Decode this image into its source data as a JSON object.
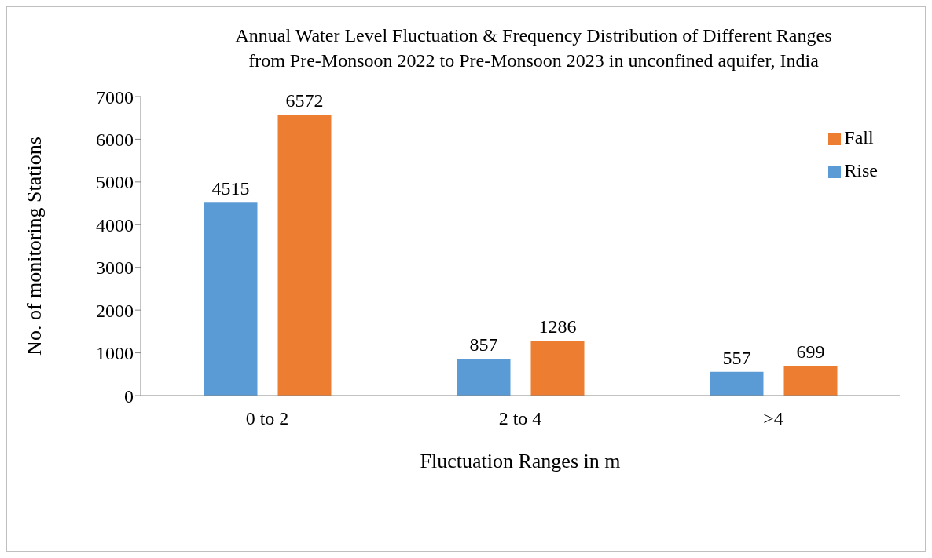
{
  "chart_data": {
    "type": "bar",
    "title": "Annual Water Level Fluctuation & Frequency Distribution of Different Ranges\nfrom Pre-Monsoon 2022 to Pre-Monsoon 2023 in unconfined aquifer, India",
    "xlabel": "Fluctuation Ranges in m",
    "ylabel": "No. of monitoring Stations",
    "categories": [
      "0 to 2",
      "2 to 4",
      ">4"
    ],
    "series": [
      {
        "name": "Rise",
        "color": "#5b9bd5",
        "values": [
          4515,
          857,
          557
        ]
      },
      {
        "name": "Fall",
        "color": "#ed7d31",
        "values": [
          6572,
          1286,
          699
        ]
      }
    ],
    "ylim": [
      0,
      7000
    ],
    "yticks": [
      0,
      1000,
      2000,
      3000,
      4000,
      5000,
      6000,
      7000
    ],
    "grid": false,
    "legend": "top right",
    "data_labels": true
  }
}
